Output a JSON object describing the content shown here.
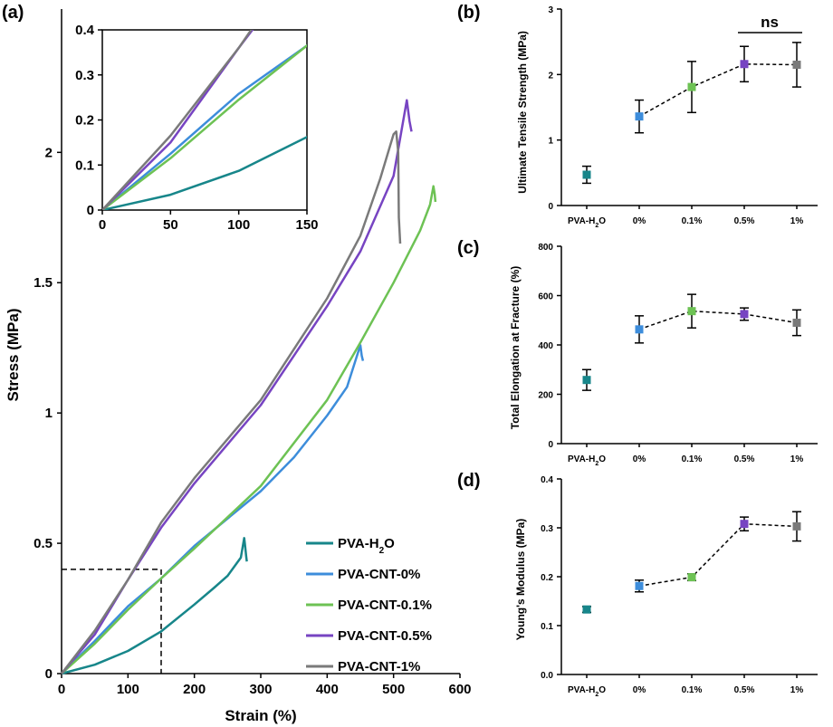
{
  "chart_data": [
    {
      "panel": "(a)",
      "type": "line",
      "xlabel": "Strain (%)",
      "ylabel": "Stress (MPa)",
      "xlim": [
        0,
        600
      ],
      "ylim": [
        0,
        2.55
      ],
      "xticks": [
        0,
        100,
        200,
        300,
        400,
        500,
        600
      ],
      "yticks": [
        0,
        0.5,
        1,
        1.5,
        2
      ],
      "ytick_labels": [
        "0",
        "0.5",
        "1",
        "1.5",
        "2"
      ],
      "legend_position": "bottom-right",
      "zoom_box": {
        "x_max": 150,
        "y_max": 0.4
      },
      "series": [
        {
          "name": "PVA-H",
          "sub": "2",
          "tail": "O",
          "color": "#17868a",
          "x": [
            0,
            50,
            100,
            150,
            200,
            230,
            250,
            270,
            275,
            276,
            278,
            279
          ],
          "y": [
            0,
            0.034,
            0.087,
            0.162,
            0.265,
            0.33,
            0.375,
            0.445,
            0.52,
            0.5,
            0.45,
            0.43
          ]
        },
        {
          "name": "PVA-CNT-0%",
          "sub": "",
          "tail": "",
          "color": "#3d8ddb",
          "x": [
            0,
            50,
            100,
            150,
            200,
            300,
            350,
            400,
            430,
            450,
            452,
            454
          ],
          "y": [
            0,
            0.125,
            0.258,
            0.365,
            0.49,
            0.7,
            0.83,
            0.99,
            1.1,
            1.26,
            1.22,
            1.2
          ]
        },
        {
          "name": "PVA-CNT-0.1%",
          "sub": "",
          "tail": "",
          "color": "#6dc254",
          "x": [
            0,
            50,
            100,
            150,
            200,
            300,
            400,
            450,
            500,
            540,
            555,
            560,
            562,
            563
          ],
          "y": [
            0,
            0.115,
            0.245,
            0.365,
            0.48,
            0.72,
            1.05,
            1.27,
            1.5,
            1.7,
            1.8,
            1.87,
            1.84,
            1.81
          ]
        },
        {
          "name": "PVA-CNT-0.5%",
          "sub": "",
          "tail": "",
          "color": "#7744c2",
          "x": [
            0,
            50,
            100,
            150,
            200,
            300,
            400,
            450,
            500,
            520,
            524,
            527
          ],
          "y": [
            0,
            0.15,
            0.36,
            0.56,
            0.73,
            1.03,
            1.41,
            1.62,
            1.91,
            2.2,
            2.12,
            2.08
          ]
        },
        {
          "name": "PVA-CNT-1%",
          "sub": "",
          "tail": "",
          "color": "#7a7a7a",
          "x": [
            0,
            50,
            100,
            150,
            200,
            300,
            400,
            450,
            480,
            500,
            504,
            507,
            508,
            510
          ],
          "y": [
            0,
            0.165,
            0.36,
            0.58,
            0.75,
            1.05,
            1.44,
            1.68,
            1.9,
            2.07,
            2.08,
            2.0,
            1.75,
            1.65
          ]
        }
      ]
    },
    {
      "panel": "(a) inset",
      "type": "line",
      "xlim": [
        0,
        150
      ],
      "ylim": [
        0,
        0.4
      ],
      "xticks": [
        0,
        50,
        100,
        150
      ],
      "yticks": [
        0,
        0.1,
        0.2,
        0.3,
        0.4
      ],
      "ytick_labels": [
        "0",
        "0.1",
        "0.2",
        "0.3",
        "0.4"
      ]
    },
    {
      "panel": "(b)",
      "type": "scatter",
      "ylabel": "Ultimate Tensile Strength (MPa)",
      "ylim": [
        0,
        3
      ],
      "yticks": [
        0,
        1,
        2,
        3
      ],
      "ytick_labels": [
        "0",
        "1",
        "2",
        "3"
      ],
      "categories": [
        "PVA-H2O",
        "0%",
        "0.1%",
        "0.5%",
        "1%"
      ],
      "values": [
        0.47,
        1.36,
        1.81,
        2.16,
        2.15
      ],
      "errors": [
        0.13,
        0.25,
        0.39,
        0.27,
        0.34
      ],
      "annotation": "ns"
    },
    {
      "panel": "(c)",
      "type": "scatter",
      "ylabel": "Total Elongation at Fracture (%)",
      "ylim": [
        0,
        800
      ],
      "yticks": [
        0,
        200,
        400,
        600,
        800
      ],
      "ytick_labels": [
        "0",
        "200",
        "400",
        "600",
        "800"
      ],
      "categories": [
        "PVA-H2O",
        "0%",
        "0.1%",
        "0.5%",
        "1%"
      ],
      "values": [
        258,
        463,
        537,
        525,
        490
      ],
      "errors": [
        42,
        55,
        68,
        25,
        52
      ]
    },
    {
      "panel": "(d)",
      "type": "scatter",
      "ylabel": "Young's Modulus (MPa)",
      "ylim": [
        0,
        0.4
      ],
      "yticks": [
        0,
        0.1,
        0.2,
        0.3,
        0.4
      ],
      "ytick_labels": [
        "0.0",
        "0.1",
        "0.2",
        "0.3",
        "0.4"
      ],
      "categories": [
        "PVA-H2O",
        "0%",
        "0.1%",
        "0.5%",
        "1%"
      ],
      "values": [
        0.133,
        0.181,
        0.199,
        0.308,
        0.303
      ],
      "errors": [
        0.006,
        0.012,
        0.007,
        0.014,
        0.03
      ]
    }
  ],
  "colors": {
    "series": [
      "#17868a",
      "#3d8ddb",
      "#6dc254",
      "#7744c2",
      "#7a7a7a"
    ]
  }
}
